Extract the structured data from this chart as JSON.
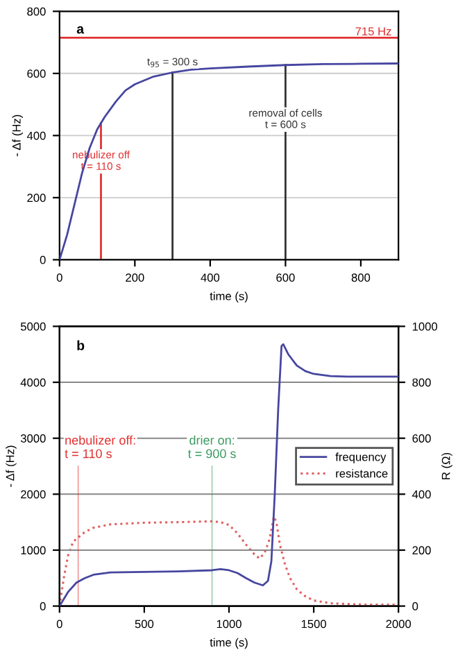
{
  "chart_data": [
    {
      "type": "line",
      "title": "a",
      "xlabel": "time (s)",
      "ylabel": "- Δf (Hz)",
      "xlim": [
        0,
        900
      ],
      "xticks": [
        0,
        200,
        400,
        600,
        800
      ],
      "ylim": [
        0,
        800
      ],
      "yticks": [
        0,
        200,
        400,
        600,
        800
      ],
      "grid": "y",
      "legend": false,
      "series": [
        {
          "color": "#4646a0",
          "x": [
            0,
            20,
            40,
            60,
            80,
            100,
            120,
            150,
            175,
            200,
            250,
            300,
            350,
            400,
            500,
            600,
            700,
            800,
            900
          ],
          "values": [
            0,
            80,
            180,
            280,
            360,
            420,
            460,
            510,
            545,
            565,
            590,
            603,
            612,
            616,
            622,
            627,
            630,
            631,
            632
          ]
        }
      ],
      "ref_lines": [
        {
          "axis": "y",
          "value": 715,
          "label": "715 Hz",
          "color": "#e03030"
        },
        {
          "axis": "x",
          "value": 110,
          "label": "nebulizer off\nt = 110 s",
          "color": "#e03030"
        },
        {
          "axis": "x",
          "value": 300,
          "label": "t$_{95}$ = 300 s",
          "color": "#333333"
        },
        {
          "axis": "x",
          "value": 600,
          "label": "removal of cells\nt = 600 s",
          "color": "#333333"
        }
      ]
    },
    {
      "type": "line",
      "title": "b",
      "xlabel": "time (s)",
      "ylabel": "- Δf (Hz)",
      "y2label": "R (Ω)",
      "xlim": [
        0,
        2000
      ],
      "xticks": [
        0,
        500,
        1000,
        1500,
        2000
      ],
      "ylim": [
        0,
        5000
      ],
      "yticks": [
        0,
        1000,
        2000,
        3000,
        4000,
        5000
      ],
      "y2lim": [
        0,
        1000
      ],
      "y2ticks": [
        0,
        200,
        400,
        600,
        800,
        1000
      ],
      "grid": "y",
      "legend": "right",
      "series": [
        {
          "name": "frequency",
          "color": "#4646a0",
          "line_style": "solid",
          "x": [
            0,
            50,
            100,
            150,
            200,
            300,
            500,
            700,
            900,
            950,
            1000,
            1050,
            1100,
            1150,
            1200,
            1230,
            1250,
            1270,
            1290,
            1310,
            1320,
            1350,
            1400,
            1450,
            1500,
            1600,
            1700,
            2000
          ],
          "values": [
            0,
            250,
            420,
            500,
            560,
            600,
            610,
            620,
            640,
            660,
            640,
            590,
            500,
            420,
            370,
            450,
            800,
            2000,
            3500,
            4650,
            4680,
            4500,
            4300,
            4200,
            4150,
            4110,
            4100,
            4100
          ]
        },
        {
          "name": "resistance",
          "color": "#e06060",
          "line_style": "dotted",
          "axis": "y2",
          "x": [
            0,
            25,
            50,
            80,
            110,
            150,
            200,
            300,
            500,
            700,
            900,
            950,
            1000,
            1050,
            1100,
            1150,
            1180,
            1210,
            1240,
            1265,
            1280,
            1300,
            1330,
            1360,
            1400,
            1450,
            1500,
            1600,
            1800,
            2000
          ],
          "values": [
            0,
            100,
            180,
            230,
            245,
            265,
            280,
            292,
            298,
            300,
            303,
            300,
            290,
            260,
            220,
            185,
            170,
            190,
            240,
            320,
            300,
            220,
            150,
            100,
            60,
            35,
            20,
            10,
            5,
            5
          ]
        }
      ],
      "ref_lines": [
        {
          "axis": "x",
          "value": 110,
          "label": "nebulizer off:\nt = 110 s",
          "color": "#e03030"
        },
        {
          "axis": "x",
          "value": 900,
          "label": "drier on:\nt = 900 s",
          "color": "#3a9a60"
        }
      ]
    }
  ]
}
